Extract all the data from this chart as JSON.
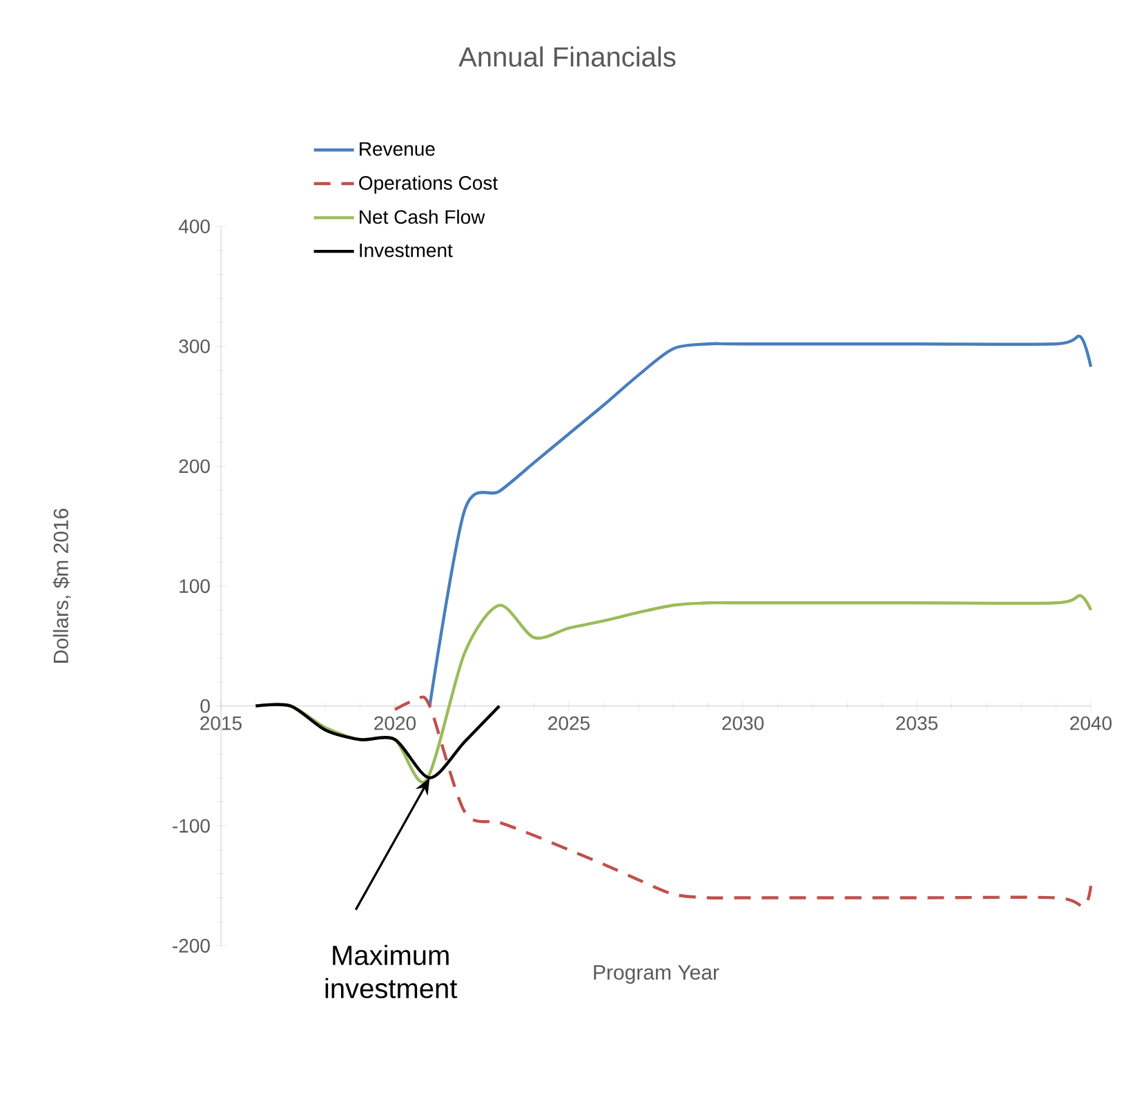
{
  "chart_data": {
    "type": "line",
    "title": "Annual Financials",
    "xlabel": "Program Year",
    "ylabel": "Dollars, $m 2016",
    "xlim": [
      2015,
      2040
    ],
    "xticks": [
      2015,
      2020,
      2025,
      2030,
      2035,
      2040
    ],
    "ylim": [
      -200,
      400
    ],
    "yticks": [
      -200,
      -100,
      0,
      100,
      200,
      300,
      400
    ],
    "legend": "top left",
    "marker": "none",
    "series": [
      {
        "name": "Revenue",
        "color": "#4a7ebb",
        "line_style": "solid",
        "x": [
          2021,
          2022,
          2023,
          2024,
          2025,
          2026,
          2027,
          2028,
          2029,
          2030,
          2035,
          2039,
          2039.7,
          2040
        ],
        "values": [
          0,
          163,
          179,
          203,
          227,
          251,
          276,
          298,
          302,
          302,
          302,
          302,
          308,
          283
        ]
      },
      {
        "name": "Operations Cost",
        "color": "#c0504d",
        "line_style": "dashed",
        "x": [
          2020,
          2020.6,
          2021,
          2022,
          2023,
          2024,
          2025,
          2026,
          2027,
          2028,
          2029,
          2030,
          2035,
          2039,
          2039.8,
          2040
        ],
        "values": [
          -3,
          5,
          0,
          -88,
          -97,
          -108,
          -120,
          -132,
          -145,
          -157,
          -160,
          -160,
          -160,
          -160,
          -167,
          -150
        ]
      },
      {
        "name": "Net Cash Flow",
        "color": "#9bbb59",
        "line_style": "solid",
        "x": [
          2016,
          2017,
          2018,
          2019,
          2020,
          2020.9,
          2022,
          2023,
          2024,
          2025,
          2026,
          2027,
          2028,
          2029,
          2030,
          2035,
          2039,
          2039.7,
          2040
        ],
        "values": [
          0,
          0,
          -18,
          -28,
          -28,
          -62,
          44,
          84,
          57,
          65,
          71,
          78,
          84,
          86,
          86,
          86,
          86,
          92,
          80
        ]
      },
      {
        "name": "Investment",
        "color": "#000000",
        "line_style": "solid",
        "x": [
          2016,
          2017,
          2018,
          2019,
          2020,
          2021,
          2022,
          2023
        ],
        "values": [
          0,
          0,
          -20,
          -28,
          -28,
          -60,
          -30,
          0
        ]
      }
    ],
    "annotations": [
      {
        "text": "Maximum investment",
        "x": 2021,
        "y": -60
      }
    ]
  }
}
